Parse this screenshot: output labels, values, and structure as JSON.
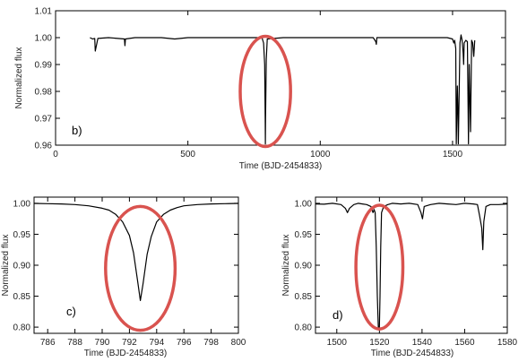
{
  "chart_data": [
    {
      "type": "line",
      "panel_label": "b)",
      "xlabel": "Time (BJD-2454833)",
      "ylabel": "Normalized flux",
      "xlim": [
        0,
        1700
      ],
      "ylim": [
        0.96,
        1.01
      ],
      "xticks": [
        0,
        500,
        1000,
        1500
      ],
      "xtick_labels": [
        "0",
        "500",
        "1000",
        "1500"
      ],
      "yticks": [
        0.96,
        0.97,
        0.98,
        0.99,
        1.0,
        1.01
      ],
      "ytick_labels": [
        "0.96",
        "0.97",
        "0.98",
        "0.99",
        "1.00",
        "1.01"
      ],
      "highlight_color": "#d9534f",
      "highlight": {
        "center": [
          792.8,
          0.98
        ],
        "rx_data": 95,
        "ry_data": 0.0205
      },
      "series": [
        {
          "x": [
            130,
            140,
            148,
            150,
            160,
            200,
            260,
            262,
            264,
            300,
            400,
            450,
            500,
            600,
            700,
            780,
            786,
            790,
            792,
            792.8,
            793.6,
            796,
            800,
            860,
            900,
            1000,
            1100,
            1200,
            1210,
            1212,
            1214,
            1300,
            1400,
            1480,
            1500,
            1505,
            1508,
            1512,
            1514,
            1518,
            1520,
            1522,
            1528,
            1532,
            1536,
            1540,
            1542,
            1544,
            1550,
            1556,
            1560,
            1563,
            1568,
            1572,
            1576,
            1580,
            1584
          ],
          "y": [
            1.0,
            0.9995,
            0.9997,
            0.995,
            0.9997,
            1.0,
            0.9995,
            0.997,
            0.9995,
            1.0,
            1.0,
            0.9995,
            1.0,
            1.0,
            1.0,
            1.0,
            0.998,
            0.99,
            0.97,
            0.9605,
            0.97,
            0.992,
            0.9995,
            1.0,
            1.0,
            1.0,
            1.0,
            1.0,
            0.9985,
            0.9975,
            1.0,
            1.0,
            1.0,
            1.0,
            0.9995,
            0.998,
            0.999,
            0.996,
            0.9605,
            0.982,
            0.975,
            0.9605,
            0.998,
            1.001,
            0.999,
            0.994,
            0.99,
            0.998,
            0.999,
            0.9985,
            0.9605,
            0.99,
            0.965,
            0.999,
            0.998,
            0.993,
            0.999
          ]
        }
      ]
    },
    {
      "type": "line",
      "panel_label": "c)",
      "xlabel": "Time (BJD-2454833)",
      "ylabel": "Normalized flux",
      "xlim": [
        785,
        800
      ],
      "ylim": [
        0.79,
        1.01
      ],
      "xticks": [
        786,
        788,
        790,
        792,
        794,
        796,
        798,
        800
      ],
      "xtick_labels": [
        "786",
        "788",
        "790",
        "792",
        "794",
        "796",
        "798",
        "800"
      ],
      "yticks": [
        0.8,
        0.85,
        0.9,
        0.95,
        1.0
      ],
      "ytick_labels": [
        "0.80",
        "0.85",
        "0.90",
        "0.95",
        "1.00"
      ],
      "highlight_color": "#d9534f",
      "highlight": {
        "center": [
          792.8,
          0.895
        ],
        "rx_data": 2.55,
        "ry_data": 0.1
      },
      "series": [
        {
          "x": [
            785,
            786,
            787,
            788,
            789,
            790,
            790.5,
            791,
            791.5,
            792,
            792.3,
            792.6,
            792.8,
            793,
            793.3,
            793.6,
            794,
            794.5,
            795,
            795.5,
            796,
            797,
            798,
            799,
            800
          ],
          "y": [
            0.9998,
            0.9995,
            0.999,
            0.998,
            0.996,
            0.992,
            0.989,
            0.982,
            0.97,
            0.948,
            0.92,
            0.875,
            0.843,
            0.87,
            0.918,
            0.946,
            0.97,
            0.982,
            0.989,
            0.993,
            0.996,
            0.998,
            0.999,
            0.9995,
            0.9998
          ]
        }
      ]
    },
    {
      "type": "line",
      "panel_label": "d)",
      "xlabel": "Time (BJD-2454833)",
      "ylabel": "Normalized flux",
      "xlim": [
        1490,
        1580
      ],
      "ylim": [
        0.79,
        1.01
      ],
      "xticks": [
        1500,
        1520,
        1540,
        1560,
        1580
      ],
      "xtick_labels": [
        "1500",
        "1520",
        "1540",
        "1560",
        "1580"
      ],
      "yticks": [
        0.8,
        0.85,
        0.9,
        0.95,
        1.0
      ],
      "ytick_labels": [
        "0.80",
        "0.85",
        "0.90",
        "0.95",
        "1.00"
      ],
      "highlight_color": "#d9534f",
      "highlight": {
        "center": [
          1520,
          0.897
        ],
        "rx_data": 11,
        "ry_data": 0.1
      },
      "series": [
        {
          "x": [
            1490,
            1494,
            1498,
            1502,
            1504,
            1505,
            1506,
            1508,
            1510,
            1512,
            1514,
            1516,
            1517,
            1517.5,
            1518,
            1518.5,
            1519,
            1519.5,
            1520,
            1520.3,
            1520.6,
            1521,
            1522,
            1524,
            1526,
            1530,
            1534,
            1538,
            1539.5,
            1540.2,
            1541,
            1544,
            1548,
            1552,
            1556,
            1560,
            1564,
            1566,
            1567,
            1568,
            1568.5,
            1569,
            1570,
            1572,
            1576,
            1580
          ],
          "y": [
            0.999,
            0.9985,
            1.0,
            0.998,
            0.992,
            0.985,
            0.992,
            0.998,
            1.0,
            0.999,
            0.998,
            0.995,
            0.985,
            0.99,
            0.985,
            0.93,
            0.85,
            0.8,
            0.8,
            0.85,
            0.93,
            0.985,
            0.995,
            0.998,
            1.0,
            0.999,
            1.0,
            0.998,
            0.985,
            0.975,
            0.995,
            0.998,
            1.0,
            0.999,
            0.998,
            1.0,
            0.999,
            0.998,
            0.98,
            0.96,
            0.925,
            0.97,
            0.995,
            0.998,
            0.998,
            0.999
          ]
        }
      ]
    }
  ]
}
